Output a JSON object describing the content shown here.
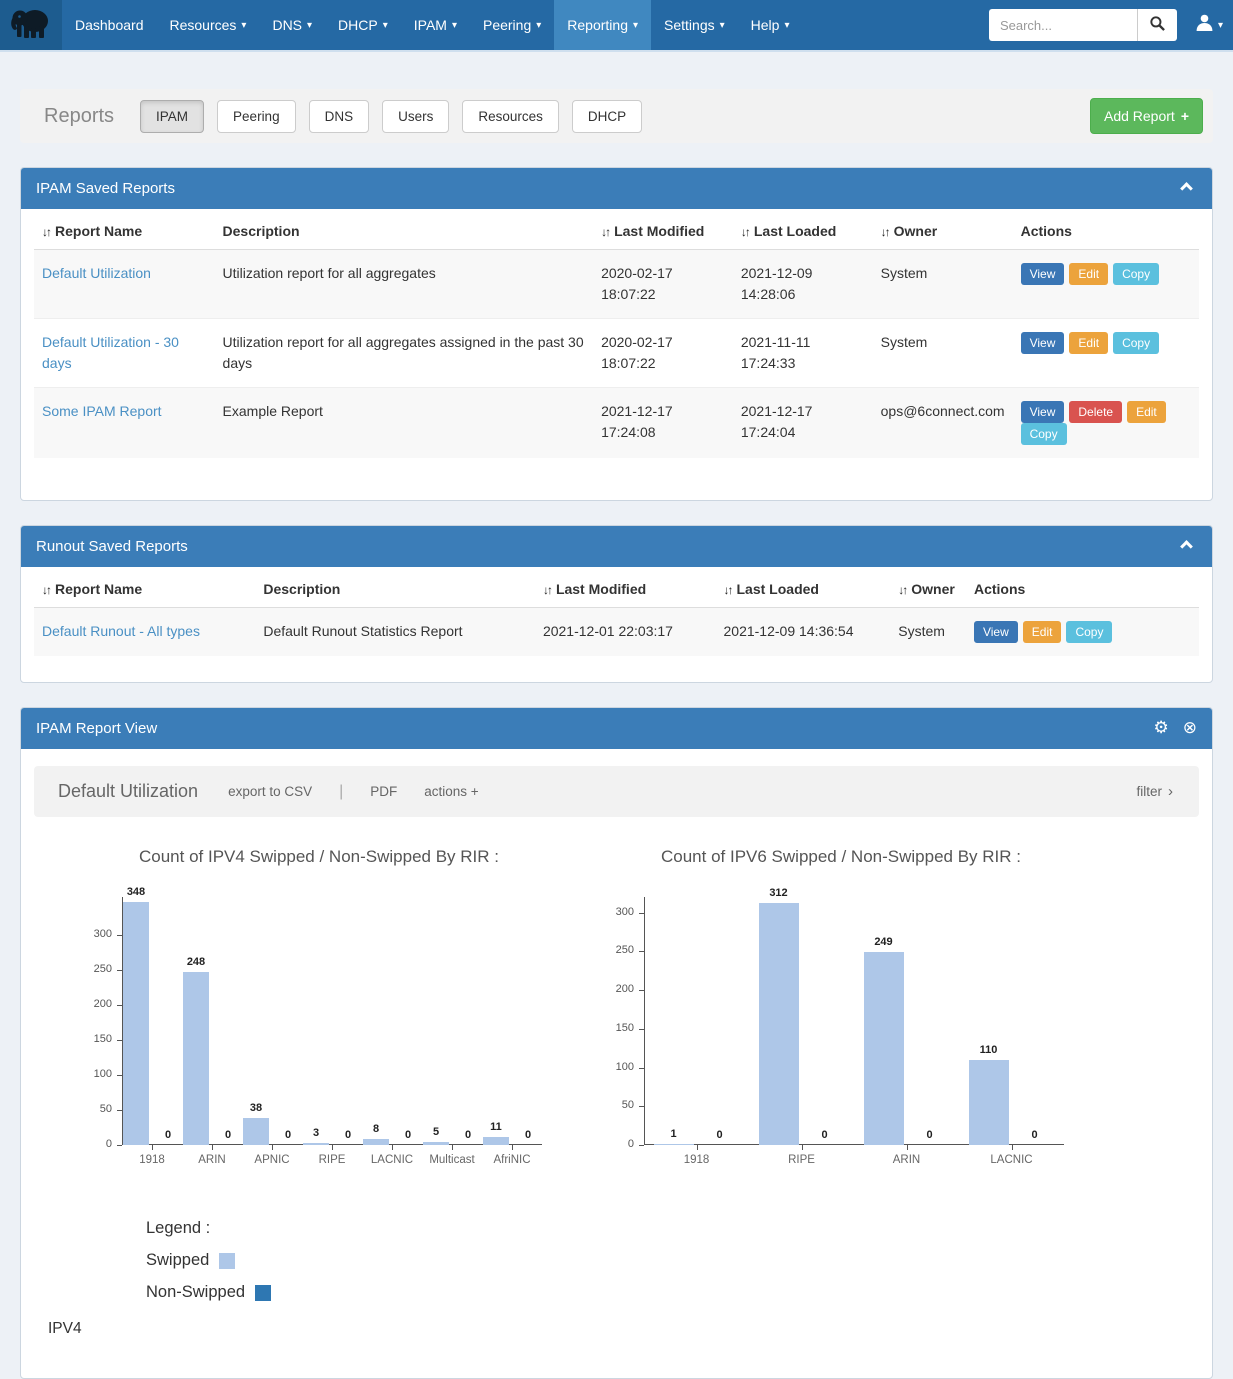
{
  "navbar": {
    "items": [
      {
        "label": "Dashboard",
        "caret": false,
        "active": false
      },
      {
        "label": "Resources",
        "caret": true,
        "active": false
      },
      {
        "label": "DNS",
        "caret": true,
        "active": false
      },
      {
        "label": "DHCP",
        "caret": true,
        "active": false
      },
      {
        "label": "IPAM",
        "caret": true,
        "active": false
      },
      {
        "label": "Peering",
        "caret": true,
        "active": false
      },
      {
        "label": "Reporting",
        "caret": true,
        "active": true
      },
      {
        "label": "Settings",
        "caret": true,
        "active": false
      },
      {
        "label": "Help",
        "caret": true,
        "active": false
      }
    ],
    "search": {
      "placeholder": "Search..."
    }
  },
  "reports_bar": {
    "title": "Reports",
    "tabs": [
      {
        "label": "IPAM",
        "active": true
      },
      {
        "label": "Peering",
        "active": false
      },
      {
        "label": "DNS",
        "active": false
      },
      {
        "label": "Users",
        "active": false
      },
      {
        "label": "Resources",
        "active": false
      },
      {
        "label": "DHCP",
        "active": false
      }
    ],
    "add_button_label": "Add Report",
    "add_button_icon": "+"
  },
  "ipam_saved": {
    "title": "IPAM Saved Reports",
    "columns": [
      {
        "label": "Report Name",
        "sortable": true
      },
      {
        "label": "Description",
        "sortable": false
      },
      {
        "label": "Last Modified",
        "sortable": true
      },
      {
        "label": "Last Loaded",
        "sortable": true
      },
      {
        "label": "Owner",
        "sortable": true
      },
      {
        "label": "Actions",
        "sortable": false
      }
    ],
    "rows": [
      {
        "name": "Default Utilization",
        "description": "Utilization report for all aggregates",
        "modified": "2020-02-17 18:07:22",
        "loaded": "2021-12-09 14:28:06",
        "owner": "System",
        "actions": [
          "View",
          "Edit",
          "Copy"
        ]
      },
      {
        "name": "Default Utilization - 30 days",
        "description": "Utilization report for all aggregates assigned in the past 30 days",
        "modified": "2020-02-17 18:07:22",
        "loaded": "2021-11-11 17:24:33",
        "owner": "System",
        "actions": [
          "View",
          "Edit",
          "Copy"
        ]
      },
      {
        "name": "Some IPAM Report",
        "description": "Example Report",
        "modified": "2021-12-17 17:24:08",
        "loaded": "2021-12-17 17:24:04",
        "owner": "ops@6connect.com",
        "actions": [
          "View",
          "Delete",
          "Edit",
          "Copy"
        ]
      }
    ]
  },
  "runout_saved": {
    "title": "Runout Saved Reports",
    "columns": [
      {
        "label": "Report Name",
        "sortable": true
      },
      {
        "label": "Description",
        "sortable": false
      },
      {
        "label": "Last Modified",
        "sortable": true
      },
      {
        "label": "Last Loaded",
        "sortable": true
      },
      {
        "label": "Owner",
        "sortable": true
      },
      {
        "label": "Actions",
        "sortable": false
      }
    ],
    "rows": [
      {
        "name": "Default Runout - All types",
        "description": "Default Runout Statistics Report",
        "modified": "2021-12-01 22:03:17",
        "loaded": "2021-12-09 14:36:54",
        "owner": "System",
        "actions": [
          "View",
          "Edit",
          "Copy"
        ]
      }
    ]
  },
  "report_view": {
    "title": "IPAM Report View",
    "report_name": "Default Utilization",
    "toolbar_links": [
      "export to CSV",
      "|",
      "PDF",
      "actions +"
    ],
    "filter_label": "filter",
    "filter_chevron": "›",
    "legend": {
      "title": "Legend :",
      "items": [
        {
          "label": "Swipped",
          "color": "#aec7e8"
        },
        {
          "label": "Non-Swipped",
          "color": "#2e77b2"
        }
      ]
    },
    "footer_section_label": "IPV4"
  },
  "chart_data": [
    {
      "type": "bar",
      "title": "Count of IPV4 Swipped / Non-Swipped By RIR :",
      "categories": [
        "1918",
        "ARIN",
        "APNIC",
        "RIPE",
        "LACNIC",
        "Multicast",
        "AfriNIC"
      ],
      "series": [
        {
          "name": "Swipped",
          "color": "#aec7e8",
          "values": [
            348,
            248,
            38,
            3,
            8,
            5,
            11
          ]
        },
        {
          "name": "Non-Swipped",
          "color": "#2e77b2",
          "values": [
            0,
            0,
            0,
            0,
            0,
            0,
            0
          ]
        }
      ],
      "xlabel": "",
      "ylabel": "",
      "yticks": [
        0,
        50,
        100,
        150,
        200,
        250,
        300
      ],
      "ylim": [
        0,
        355
      ],
      "grid": false,
      "legend_position": "below-left"
    },
    {
      "type": "bar",
      "title": "Count of IPV6 Swipped / Non-Swipped By RIR :",
      "categories": [
        "1918",
        "RIPE",
        "ARIN",
        "LACNIC"
      ],
      "series": [
        {
          "name": "Swipped",
          "color": "#aec7e8",
          "values": [
            1,
            312,
            249,
            110
          ]
        },
        {
          "name": "Non-Swipped",
          "color": "#2e77b2",
          "values": [
            0,
            0,
            0,
            0
          ]
        }
      ],
      "xlabel": "",
      "ylabel": "",
      "yticks": [
        0,
        50,
        100,
        150,
        200,
        250,
        300
      ],
      "ylim": [
        0,
        320
      ],
      "grid": false,
      "legend_position": "below-left"
    }
  ],
  "colors": {
    "navbar": "#2569a4",
    "navbar_active": "#4088c0",
    "panel_header": "#3b7db8",
    "add_button": "#5cb85c",
    "link": "#4a90c4",
    "bar_swipped": "#aec7e8",
    "bar_nonswipped": "#2e77b2",
    "action_view": "#3a76b5",
    "action_edit": "#eca33c",
    "action_copy": "#5bc0de",
    "action_delete": "#d9534f"
  }
}
